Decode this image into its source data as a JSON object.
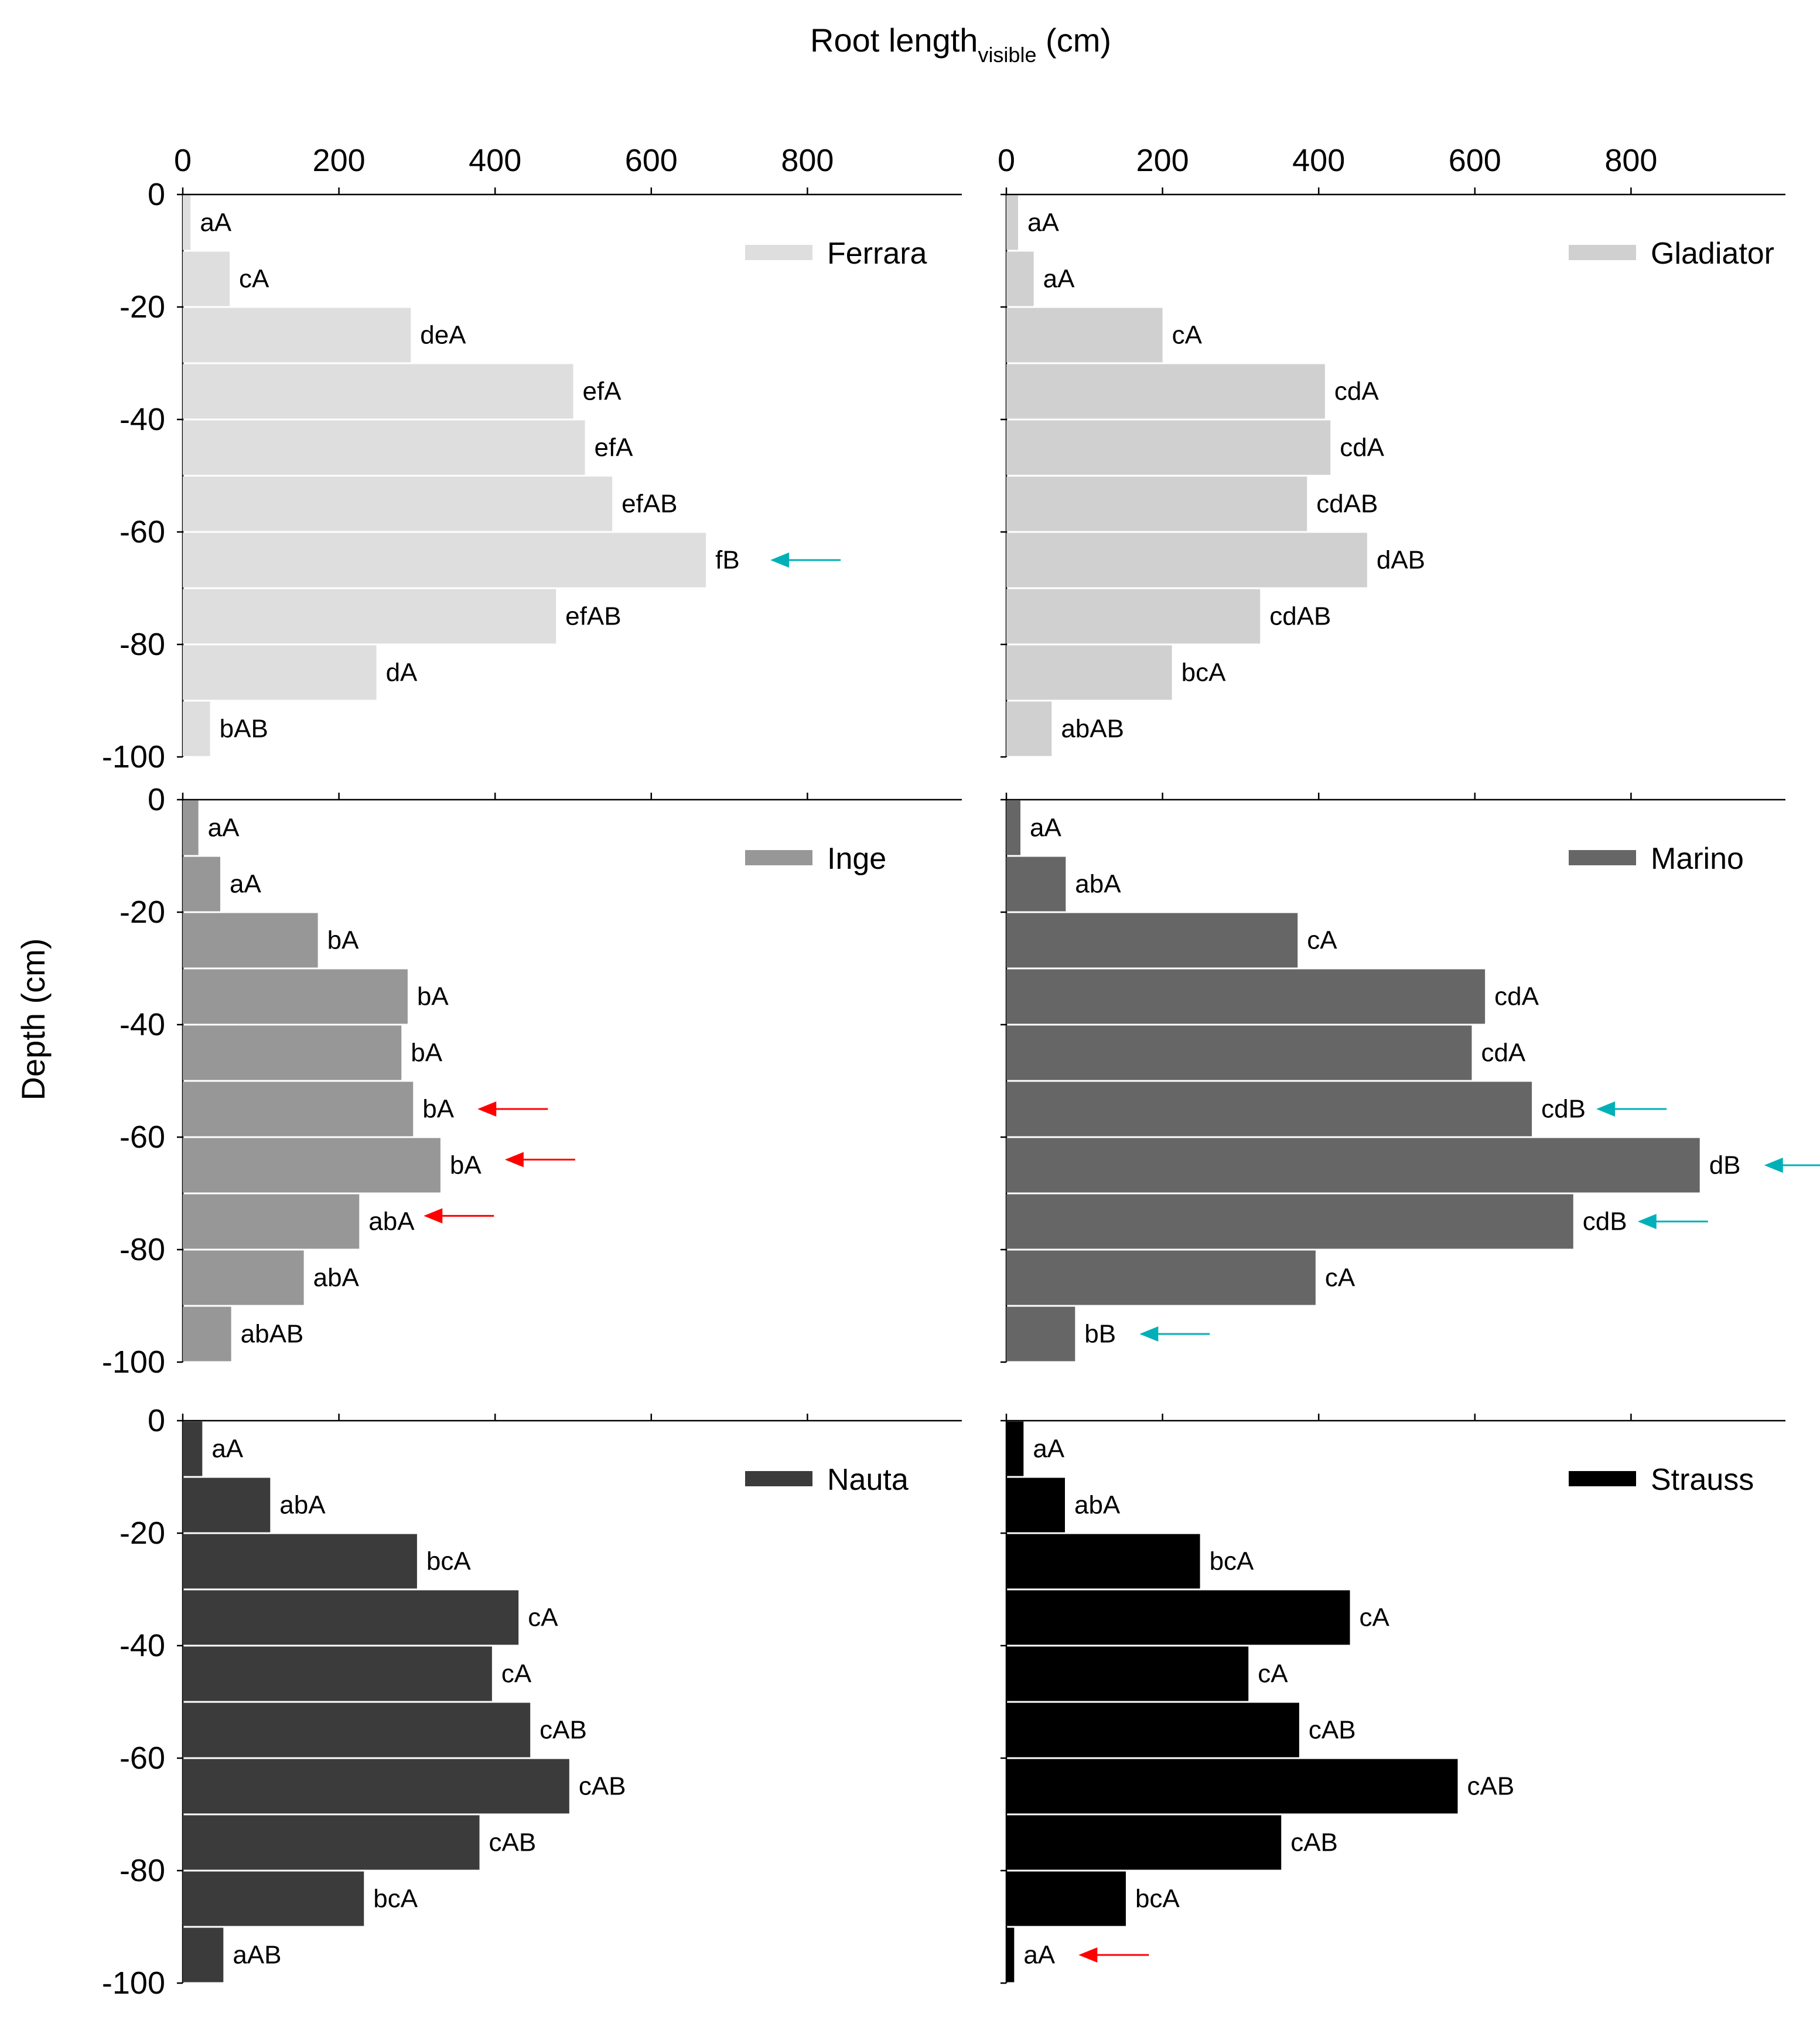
{
  "figure": {
    "x_title": "Root length",
    "x_title_sub": "visible",
    "x_title_unit": " (cm)",
    "y_title": "Depth (cm)"
  },
  "chart_data": [
    {
      "type": "bar",
      "orientation": "horizontal",
      "name": "Ferrara",
      "color": "#dedede",
      "xlim": [
        0,
        1000
      ],
      "xticks": [
        0,
        200,
        400,
        600,
        800
      ],
      "ylim": [
        -100,
        0
      ],
      "yticks": [
        0,
        -20,
        -40,
        -60,
        -80,
        -100
      ],
      "depths": [
        0,
        -10,
        -20,
        -30,
        -40,
        -50,
        -60,
        -70,
        -80,
        -90
      ],
      "values": [
        10,
        60,
        292,
        500,
        515,
        550,
        670,
        478,
        248,
        35
      ],
      "labels": [
        "aA",
        "cA",
        "deA",
        "efA",
        "efA",
        "efAB",
        "fB",
        "efAB",
        "dA",
        "bAB"
      ],
      "arrows": [
        {
          "depth": -65,
          "color": "#00b0b8"
        }
      ],
      "legend": "top-right"
    },
    {
      "type": "bar",
      "orientation": "horizontal",
      "name": "Gladiator",
      "color": "#d0d0d0",
      "xlim": [
        0,
        1000
      ],
      "xticks": [
        0,
        200,
        400,
        600,
        800
      ],
      "ylim": [
        -100,
        0
      ],
      "yticks": [
        0,
        -20,
        -40,
        -60,
        -80,
        -100
      ],
      "depths": [
        0,
        -10,
        -20,
        -30,
        -40,
        -50,
        -60,
        -70,
        -80,
        -90
      ],
      "values": [
        15,
        35,
        200,
        408,
        415,
        385,
        462,
        325,
        212,
        58
      ],
      "labels": [
        "aA",
        "aA",
        "cA",
        "cdA",
        "cdA",
        "cdAB",
        "dAB",
        "cdAB",
        "bcA",
        "abAB"
      ],
      "arrows": [],
      "legend": "top-right"
    },
    {
      "type": "bar",
      "orientation": "horizontal",
      "name": "Inge",
      "color": "#979797",
      "xlim": [
        0,
        1000
      ],
      "xticks": [
        0,
        200,
        400,
        600,
        800
      ],
      "ylim": [
        -100,
        0
      ],
      "yticks": [
        0,
        -20,
        -40,
        -60,
        -80,
        -100
      ],
      "depths": [
        0,
        -10,
        -20,
        -30,
        -40,
        -50,
        -60,
        -70,
        -80,
        -90
      ],
      "values": [
        20,
        48,
        173,
        288,
        280,
        295,
        330,
        226,
        155,
        62
      ],
      "labels": [
        "aA",
        "aA",
        "bA",
        "bA",
        "bA",
        "bA",
        "bA",
        "abA",
        "abA",
        "abAB"
      ],
      "arrows": [
        {
          "depth": -55,
          "color": "#ff0000"
        },
        {
          "depth": -64,
          "color": "#ff0000"
        },
        {
          "depth": -74,
          "color": "#ff0000"
        }
      ],
      "legend": "top-right"
    },
    {
      "type": "bar",
      "orientation": "horizontal",
      "name": "Marino",
      "color": "#666666",
      "xlim": [
        0,
        1000
      ],
      "xticks": [
        0,
        200,
        400,
        600,
        800
      ],
      "ylim": [
        -100,
        0
      ],
      "yticks": [
        0,
        -20,
        -40,
        -60,
        -80,
        -100
      ],
      "depths": [
        0,
        -10,
        -20,
        -30,
        -40,
        -50,
        -60,
        -70,
        -80,
        -90
      ],
      "values": [
        18,
        76,
        373,
        613,
        596,
        673,
        888,
        726,
        396,
        88
      ],
      "labels": [
        "aA",
        "abA",
        "cA",
        "cdA",
        "cdA",
        "cdB",
        "dB",
        "cdB",
        "cA",
        "bB"
      ],
      "arrows": [
        {
          "depth": -55,
          "color": "#00b0b8"
        },
        {
          "depth": -65,
          "color": "#00b0b8"
        },
        {
          "depth": -75,
          "color": "#00b0b8"
        },
        {
          "depth": -95,
          "color": "#00b0b8"
        }
      ],
      "legend": "top-right"
    },
    {
      "type": "bar",
      "orientation": "horizontal",
      "name": "Nauta",
      "color": "#3b3b3b",
      "xlim": [
        0,
        1000
      ],
      "xticks": [
        0,
        200,
        400,
        600,
        800
      ],
      "ylim": [
        -100,
        0
      ],
      "yticks": [
        0,
        -20,
        -40,
        -60,
        -80,
        -100
      ],
      "depths": [
        0,
        -10,
        -20,
        -30,
        -40,
        -50,
        -60,
        -70,
        -80,
        -90
      ],
      "values": [
        25,
        112,
        300,
        430,
        396,
        445,
        495,
        380,
        232,
        52
      ],
      "labels": [
        "aA",
        "abA",
        "bcA",
        "cA",
        "cA",
        "cAB",
        "cAB",
        "cAB",
        "bcA",
        "aAB"
      ],
      "arrows": [],
      "legend": "top-right"
    },
    {
      "type": "bar",
      "orientation": "horizontal",
      "name": "Strauss",
      "color": "#000000",
      "xlim": [
        0,
        1000
      ],
      "xticks": [
        0,
        200,
        400,
        600,
        800
      ],
      "ylim": [
        -100,
        0
      ],
      "yticks": [
        0,
        -20,
        -40,
        -60,
        -80,
        -100
      ],
      "depths": [
        0,
        -10,
        -20,
        -30,
        -40,
        -50,
        -60,
        -70,
        -80,
        -90
      ],
      "values": [
        22,
        75,
        248,
        440,
        310,
        375,
        578,
        352,
        153,
        10
      ],
      "labels": [
        "aA",
        "abA",
        "bcA",
        "cA",
        "cA",
        "cAB",
        "cAB",
        "cAB",
        "bcA",
        "aA"
      ],
      "arrows": [
        {
          "depth": -95,
          "color": "#ff0000"
        }
      ],
      "legend": "top-right"
    }
  ]
}
